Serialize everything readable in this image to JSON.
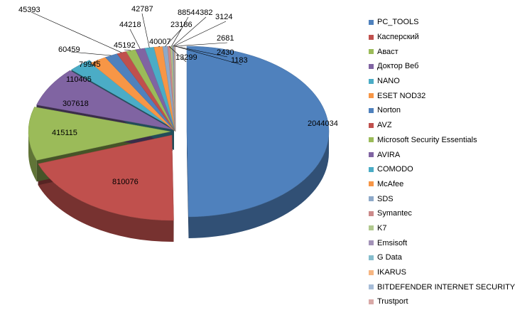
{
  "chart_data": {
    "type": "pie",
    "subtype": "3d-exploded",
    "legend_position": "right",
    "categories": [
      "PC_TOOLS",
      "Касперский",
      "Аваст",
      "Доктор Веб",
      "NANO",
      "ESET NOD32",
      "Norton",
      "AVZ",
      "Microsoft Security Essentials",
      "AVIRA",
      "COMODO",
      "McAfee",
      "SDS",
      "Symantec",
      "K7",
      " Emsisoft",
      " G Data",
      "IKARUS",
      "BITDEFENDER INTERNET SECURITY",
      "Trustport"
    ],
    "values": [
      2044034,
      810076,
      415115,
      307618,
      110405,
      79945,
      60459,
      45393,
      45192,
      44218,
      42787,
      40007,
      23186,
      13299,
      8854,
      4382,
      3124,
      2681,
      2430,
      1183
    ],
    "labels": [
      "2044034",
      "810076",
      "415115",
      "307618",
      "110405",
      "79945",
      "60459",
      "45393",
      "45192",
      "44218",
      "42787",
      "40007",
      "23186",
      "13299",
      "8854",
      "4382",
      "3124",
      "2681",
      "2430",
      "1183"
    ],
    "colors": [
      "#4F81BD",
      "#C0504D",
      "#9BBB59",
      "#8064A2",
      "#4BACC6",
      "#F79646",
      "#4F81BD",
      "#C0504D",
      "#9BBB59",
      "#8064A2",
      "#4BACC6",
      "#F79646",
      "#8EA9C9",
      "#CB8A8A",
      "#B1C98F",
      "#A393B8",
      "#86BDCD",
      "#F6B683",
      "#A6BCD8",
      "#D9A9A7"
    ]
  }
}
